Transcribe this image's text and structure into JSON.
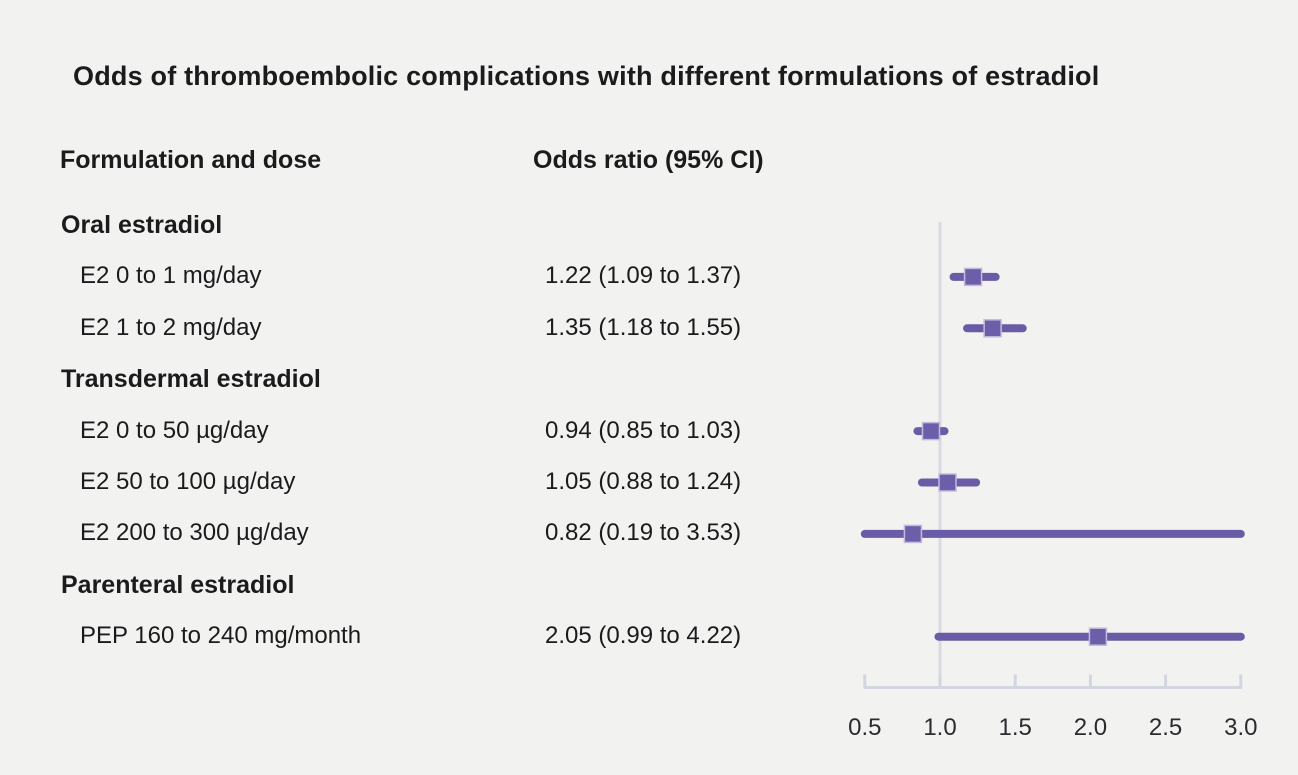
{
  "title": "Odds of thromboembolic complications with different formulations of estradiol",
  "columns": {
    "left": "Formulation and dose",
    "right": "Odds ratio (95% CI)"
  },
  "colors": {
    "background": "#f2f2f1",
    "text": "#1b1b1d",
    "purple": "#6a5ba6",
    "marker_fill": "#6d5ea9",
    "marker_border": "#c3bade",
    "reference_line": "#d9dbe4",
    "axis": "#d2d6de",
    "tick_label": "#2b2c2f"
  },
  "chart_data": {
    "type": "scatter",
    "subtype": "forest-plot",
    "title": "Odds of thromboembolic complications with different formulations of estradiol",
    "x_axis": {
      "tick_labels": [
        "0.5",
        "1.0",
        "1.5",
        "2.0",
        "2.5",
        "3.0"
      ],
      "tick_values": [
        0.5,
        1.0,
        1.5,
        2.0,
        2.5,
        3.0
      ],
      "range": [
        0.5,
        3.0
      ],
      "reference_line_value": 1.0,
      "scale": "linear",
      "grid": false
    },
    "legend": "none",
    "groups": [
      {
        "label": "Oral estradiol",
        "items": [
          {
            "label": "E2 0 to 1 mg/day",
            "or": 1.22,
            "ci_low": 1.09,
            "ci_high": 1.37,
            "text": "1.22 (1.09 to 1.37)"
          },
          {
            "label": "E2 1 to 2 mg/day",
            "or": 1.35,
            "ci_low": 1.18,
            "ci_high": 1.55,
            "text": "1.35 (1.18 to 1.55)"
          }
        ]
      },
      {
        "label": "Transdermal estradiol",
        "items": [
          {
            "label": "E2 0 to 50 µg/day",
            "or": 0.94,
            "ci_low": 0.85,
            "ci_high": 1.03,
            "text": "0.94 (0.85 to 1.03)"
          },
          {
            "label": "E2 50 to 100 µg/day",
            "or": 1.05,
            "ci_low": 0.88,
            "ci_high": 1.24,
            "text": "1.05 (0.88 to 1.24)"
          },
          {
            "label": "E2 200 to 300 µg/day",
            "or": 0.82,
            "ci_low": 0.19,
            "ci_high": 3.53,
            "text": "0.82 (0.19 to 3.53)"
          }
        ]
      },
      {
        "label": "Parenteral estradiol",
        "items": [
          {
            "label": "PEP 160 to 240 mg/month",
            "or": 2.05,
            "ci_low": 0.99,
            "ci_high": 4.22,
            "text": "2.05 (0.99 to 4.22)"
          }
        ]
      }
    ]
  }
}
